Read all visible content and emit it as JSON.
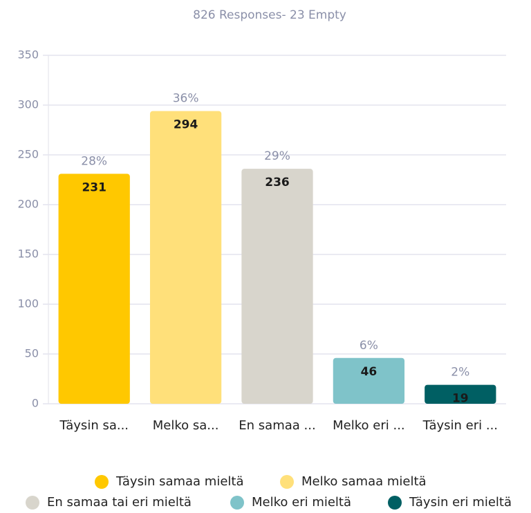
{
  "chart_data": {
    "type": "bar",
    "title": "826 Responses- 23 Empty",
    "categories": [
      "Täysin sa...",
      "Melko sa...",
      "En samaa ...",
      "Melko eri ...",
      "Täysin eri ..."
    ],
    "values": [
      231,
      294,
      236,
      46,
      19
    ],
    "percent_labels": [
      "28%",
      "36%",
      "29%",
      "6%",
      "2%"
    ],
    "colors": [
      "#ffc800",
      "#ffe07a",
      "#d8d5cc",
      "#7fc3c9",
      "#005f63"
    ],
    "legend": [
      "Täysin samaa mieltä",
      "Melko samaa mieltä",
      "En samaa tai eri mieltä",
      "Melko eri mieltä",
      "Täysin eri mieltä"
    ],
    "ylim": [
      0,
      350
    ],
    "yticks": [
      0,
      50,
      100,
      150,
      200,
      250,
      300,
      350
    ],
    "grid": true
  }
}
